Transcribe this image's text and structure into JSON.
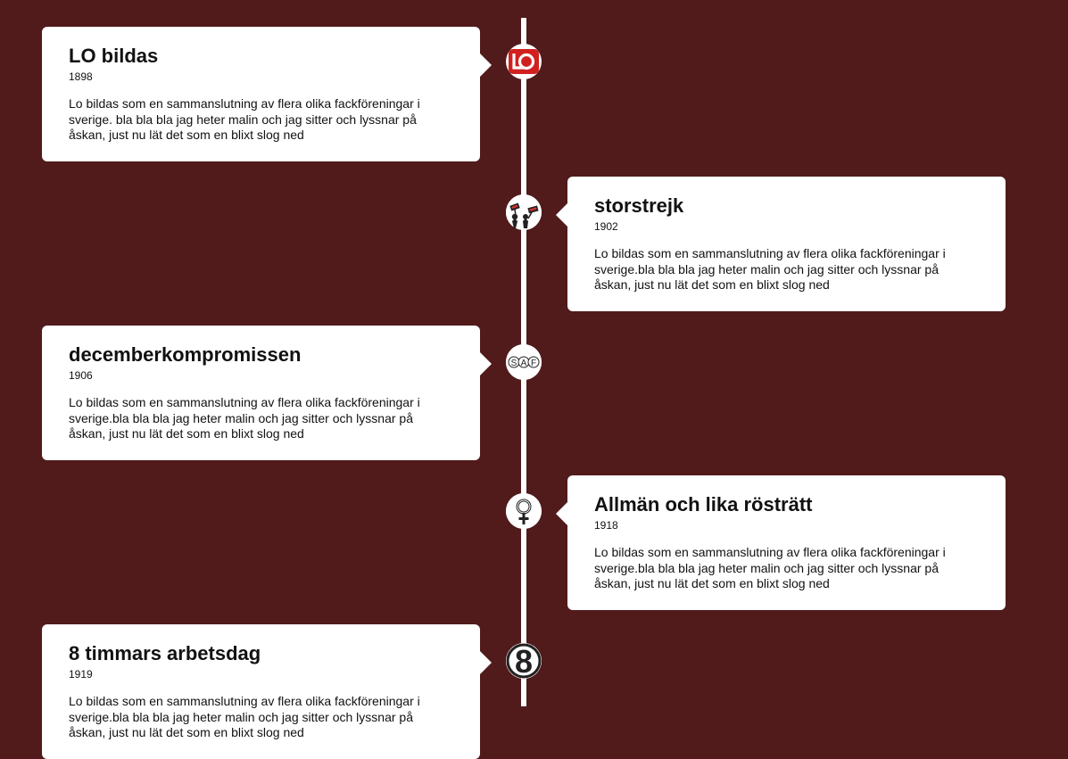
{
  "events": [
    {
      "title": "LO bildas",
      "year": "1898",
      "text": "Lo bildas som en sammanslutning av flera olika fackföreningar i sverige. bla bla bla jag heter malin och jag sitter och lyssnar på åskan, just nu lät det som en blixt slog ned",
      "icon": "lo-logo-icon"
    },
    {
      "title": "storstrejk",
      "year": "1902",
      "text": "Lo bildas som en sammanslutning av flera olika fackföreningar i sverige.bla bla bla jag heter malin och jag sitter och lyssnar på åskan, just nu lät det som en blixt slog ned",
      "icon": "protest-icon"
    },
    {
      "title": "decemberkompromissen",
      "year": "1906",
      "text": "Lo bildas som en sammanslutning av flera olika fackföreningar i sverige.bla bla bla jag heter malin och jag sitter och lyssnar på åskan, just nu lät det som en blixt slog ned",
      "icon": "saf-logo-icon",
      "icon_letters": [
        "S",
        "A",
        "F"
      ]
    },
    {
      "title": "Allmän och lika rösträtt",
      "year": "1918",
      "text": "Lo bildas som en sammanslutning av flera olika fackföreningar i sverige.bla bla bla jag heter malin och jag sitter och lyssnar på åskan, just nu lät det som en blixt slog ned",
      "icon": "female-symbol-icon"
    },
    {
      "title": "8 timmars arbetsdag",
      "year": "1919",
      "text": "Lo bildas som en sammanslutning av flera olika fackföreningar i sverige.bla bla bla jag heter malin och jag sitter och lyssnar på åskan, just nu lät det som en blixt slog ned",
      "icon": "number-eight-icon",
      "icon_text": "8"
    }
  ],
  "colors": {
    "background": "#511b1b",
    "card": "#ffffff",
    "lo_red": "#d1201f"
  }
}
